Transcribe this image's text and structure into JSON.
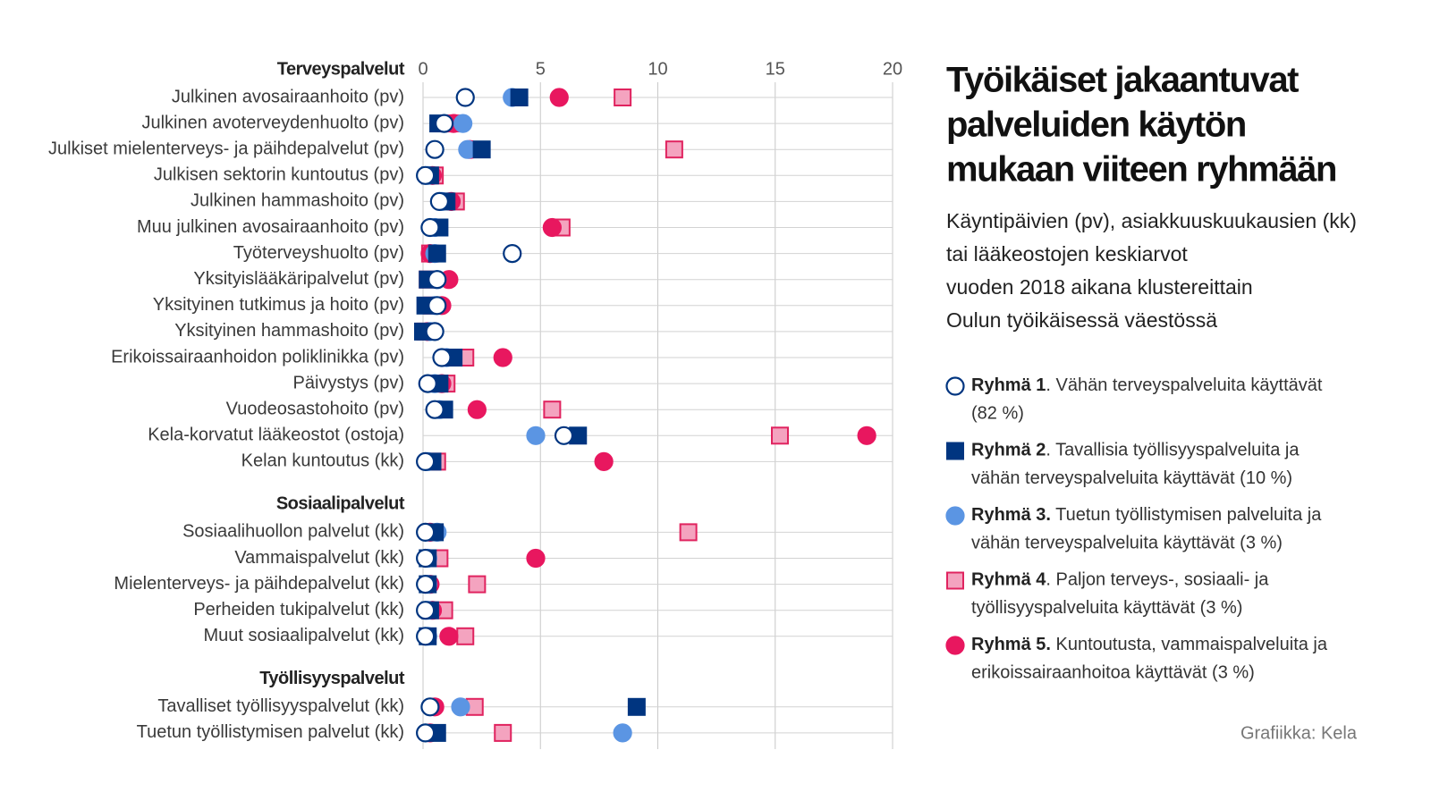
{
  "chart_data": {
    "type": "dot",
    "title": [
      "Työikäiset jakaantuvat",
      "palveluiden käytön",
      "mukaan viiteen ryhmään"
    ],
    "subtitle": [
      "Käyntipäivien (pv), asiakkuuskuukausien (kk)",
      "tai lääkeostojen keskiarvot",
      "vuoden 2018 aikana klustereittain",
      "Oulun työikäisessä väestössä"
    ],
    "credit": "Grafiikka: Kela",
    "sections": [
      {
        "label": "Terveyspalvelut",
        "categories": [
          "Julkinen avosairaanhoito (pv)",
          "Julkinen avoterveydenhuolto (pv)",
          "Julkiset mielenterveys- ja päihdepalvelut (pv)",
          "Julkisen sektorin kuntoutus (pv)",
          "Julkinen hammashoito (pv)",
          "Muu julkinen avosairaanhoito (pv)",
          "Työterveyshuolto (pv)",
          "Yksityislääkäripalvelut (pv)",
          "Yksityinen tutkimus ja hoito (pv)",
          "Yksityinen hammashoito (pv)",
          "Erikoissairaanhoidon poliklinikka (pv)",
          "Päivystys (pv)",
          "Vuodeosastohoito (pv)",
          "Kela-korvatut lääkeostot (ostoja)",
          "Kelan kuntoutus (kk)"
        ]
      },
      {
        "label": "Sosiaalipalvelut",
        "categories": [
          "Sosiaalihuollon palvelut (kk)",
          "Vammaispalvelut (kk)",
          "Mielenterveys- ja päihdepalvelut (kk)",
          "Perheiden tukipalvelut (kk)",
          "Muut sosiaalipalvelut (kk)"
        ]
      },
      {
        "label": "Työllisyyspalvelut",
        "categories": [
          "Tavalliset työllisyyspalvelut (kk)",
          "Tuetun työllistymisen palvelut (kk)"
        ]
      }
    ],
    "series": [
      {
        "name": "Ryhmä 4",
        "description": [
          ". Paljon terveys-, sosiaali- ja",
          "työllisyyspalveluita käyttävät (3 %)"
        ],
        "marker": "square",
        "fill": "#f4a3bf",
        "color": "#e0235f",
        "values": [
          8.5,
          1.2,
          10.7,
          0.5,
          1.4,
          5.9,
          0.3,
          0.2,
          0.4,
          0.1,
          1.8,
          1.0,
          5.5,
          15.2,
          0.6,
          11.3,
          0.7,
          2.3,
          0.9,
          1.8,
          2.2,
          3.4
        ]
      },
      {
        "name": "Ryhmä 5.",
        "description": [
          " Kuntoutusta, vammaispalveluita ja",
          "erikoissairaanhoitoa käyttävät (3 %)"
        ],
        "marker": "circle",
        "fill": "#e8175f",
        "color": "#e8175f",
        "values": [
          5.8,
          1.3,
          2.0,
          0.4,
          1.2,
          5.5,
          0.3,
          1.1,
          0.8,
          0.2,
          3.4,
          0.8,
          2.3,
          18.9,
          7.7,
          0.3,
          4.8,
          0.3,
          0.4,
          1.1,
          0.5,
          0.3
        ]
      },
      {
        "name": "Ryhmä 3.",
        "description": [
          " Tuetun työllistymisen palveluita ja",
          "vähän terveyspalveluita käyttävät (3 %)"
        ],
        "marker": "circle",
        "fill": "#5b95e3",
        "color": "#5b95e3",
        "values": [
          3.8,
          1.7,
          1.9,
          0.2,
          0.8,
          0.5,
          0.5,
          0.6,
          0.5,
          0.3,
          1.0,
          0.5,
          0.7,
          4.8,
          0.2,
          0.6,
          0.2,
          0.2,
          0.2,
          0.2,
          1.6,
          8.5
        ]
      },
      {
        "name": "Ryhmä 2",
        "description": [
          ". Tavallisia työllisyyspalveluita ja",
          "vähän terveyspalveluita käyttävät (10 %)"
        ],
        "marker": "square",
        "fill": "#003580",
        "color": "#003580",
        "values": [
          4.1,
          0.65,
          2.5,
          0.3,
          1.0,
          0.7,
          0.6,
          0.2,
          0.1,
          0.0,
          1.3,
          0.7,
          0.9,
          6.6,
          0.4,
          0.5,
          0.2,
          0.2,
          0.3,
          0.2,
          9.1,
          0.6
        ]
      },
      {
        "name": "Ryhmä 1",
        "description": [
          ". Vähän terveyspalveluita käyttävät",
          "(82 %)"
        ],
        "marker": "circle",
        "fill": "#ffffff",
        "color": "#003580",
        "values": [
          1.8,
          0.9,
          0.5,
          0.1,
          0.7,
          0.3,
          3.8,
          0.6,
          0.6,
          0.5,
          0.8,
          0.2,
          0.5,
          6.0,
          0.1,
          0.1,
          0.1,
          0.1,
          0.1,
          0.1,
          0.3,
          0.1
        ]
      }
    ],
    "legend_order": [
      4,
      3,
      2,
      0,
      1
    ],
    "xlim": [
      0,
      20
    ],
    "xticks": [
      0,
      5,
      10,
      15,
      20
    ],
    "grid": true
  }
}
